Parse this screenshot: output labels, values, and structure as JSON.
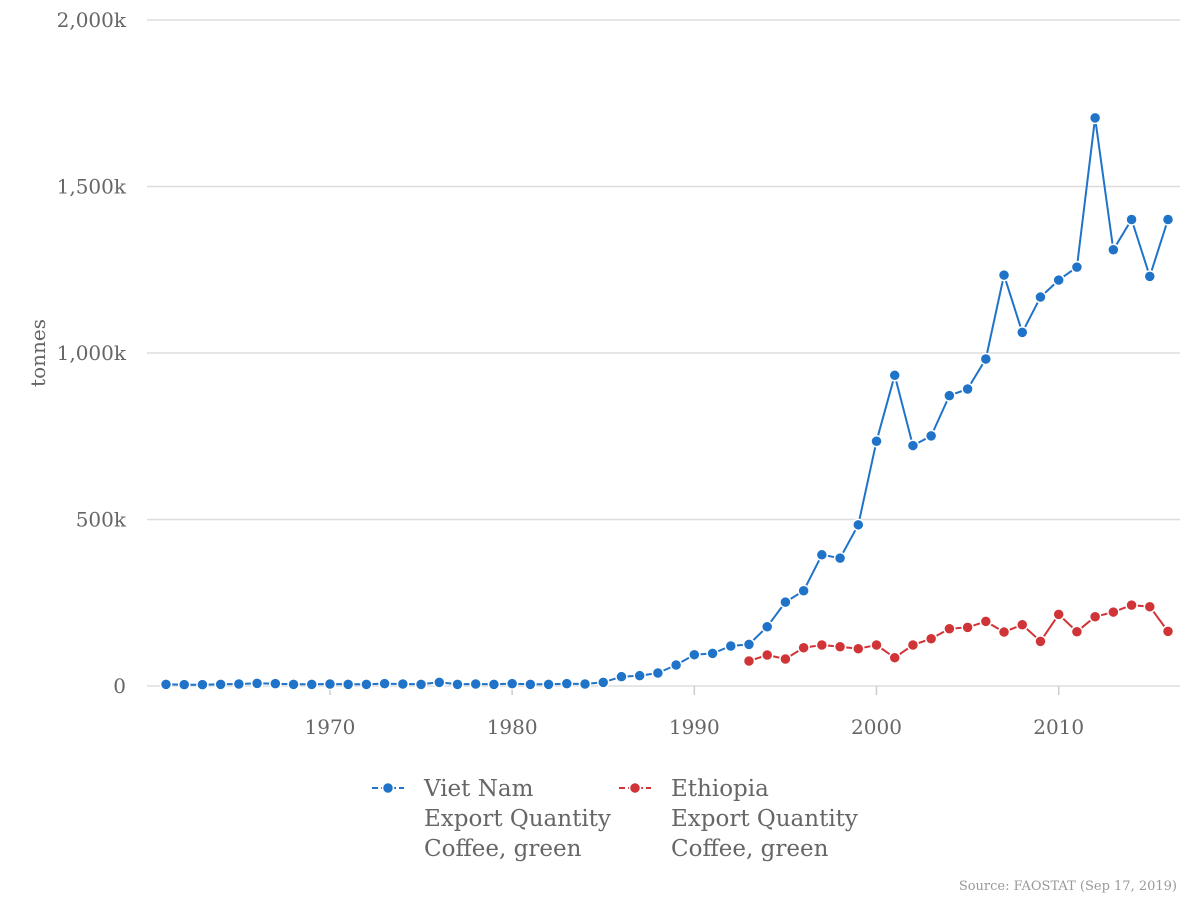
{
  "chart_data": {
    "type": "line",
    "xlabel": "",
    "ylabel": "tonnes",
    "xlim": [
      1961,
      2016
    ],
    "ylim": [
      0,
      2000000
    ],
    "x_ticks": [
      1970,
      1980,
      1990,
      2000,
      2010
    ],
    "y_ticks": [
      {
        "value": 0,
        "label": "0"
      },
      {
        "value": 500000,
        "label": "500k"
      },
      {
        "value": 1000000,
        "label": "1,000k"
      },
      {
        "value": 1500000,
        "label": "1,500k"
      },
      {
        "value": 2000000,
        "label": "2,000k"
      }
    ],
    "grid": true,
    "legend_position": "bottom",
    "series": [
      {
        "name": "Viet Nam",
        "legend_lines": [
          "Viet Nam",
          "Export Quantity",
          "Coffee, green"
        ],
        "color": "#1f73c9",
        "x": [
          1961,
          1962,
          1963,
          1964,
          1965,
          1966,
          1967,
          1968,
          1969,
          1970,
          1971,
          1972,
          1973,
          1974,
          1975,
          1976,
          1977,
          1978,
          1979,
          1980,
          1981,
          1982,
          1983,
          1984,
          1985,
          1986,
          1987,
          1988,
          1989,
          1990,
          1991,
          1992,
          1993,
          1994,
          1995,
          1996,
          1997,
          1998,
          1999,
          2000,
          2001,
          2002,
          2003,
          2004,
          2005,
          2006,
          2007,
          2008,
          2009,
          2010,
          2011,
          2012,
          2013,
          2014,
          2015,
          2016
        ],
        "y": [
          5000,
          4000,
          4000,
          5000,
          6000,
          8000,
          7000,
          5000,
          5000,
          6000,
          5000,
          5000,
          7000,
          6000,
          5000,
          11000,
          5000,
          6000,
          5000,
          7000,
          5000,
          5000,
          7000,
          6000,
          11000,
          28000,
          31000,
          39000,
          63000,
          94000,
          98000,
          120000,
          125000,
          178000,
          252000,
          286000,
          394000,
          384000,
          484000,
          735000,
          933000,
          722000,
          751000,
          872000,
          892000,
          982000,
          1234000,
          1062000,
          1168000,
          1219000,
          1258000,
          1706000,
          1310000,
          1401000,
          1230000,
          1401000
        ]
      },
      {
        "name": "Ethiopia",
        "legend_lines": [
          "Ethiopia",
          "Export Quantity",
          "Coffee, green"
        ],
        "color": "#d03437",
        "x": [
          1993,
          1994,
          1995,
          1996,
          1997,
          1998,
          1999,
          2000,
          2001,
          2002,
          2003,
          2004,
          2005,
          2006,
          2007,
          2008,
          2009,
          2010,
          2011,
          2012,
          2013,
          2014,
          2015,
          2016
        ],
        "y": [
          75000,
          93000,
          81000,
          115000,
          123000,
          118000,
          112000,
          123000,
          85000,
          123000,
          142000,
          172000,
          176000,
          194000,
          162000,
          184000,
          134000,
          215000,
          163000,
          208000,
          222000,
          243000,
          238000,
          164000
        ]
      }
    ]
  },
  "source": "Source: FAOSTAT (Sep 17, 2019)"
}
